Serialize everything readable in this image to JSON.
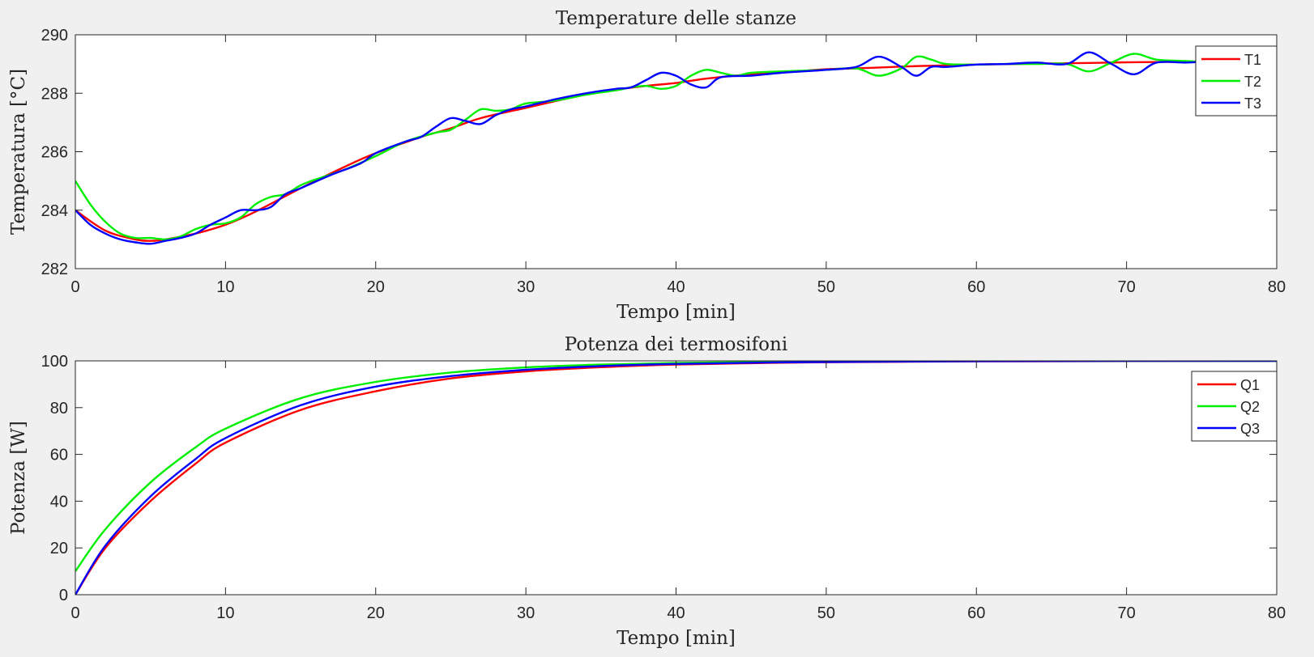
{
  "chart_data": [
    {
      "type": "line",
      "title": "Temperature delle stanze",
      "xlabel": "Tempo [min]",
      "ylabel": "Temperatura [°C]",
      "xlim": [
        0,
        80
      ],
      "ylim": [
        282,
        290
      ],
      "xticks": [
        0,
        10,
        20,
        30,
        40,
        50,
        60,
        70,
        80
      ],
      "yticks": [
        282,
        284,
        286,
        288,
        290
      ],
      "grid": false,
      "legend_position": "top-right",
      "series": [
        {
          "name": "T1",
          "color": "#ff0000",
          "x": [
            0,
            2,
            4,
            5,
            6,
            8,
            10,
            12,
            15,
            18,
            20,
            23,
            25,
            27,
            30,
            33,
            35,
            38,
            40,
            42,
            45,
            48,
            50,
            53,
            56,
            60,
            65,
            68,
            70,
            75,
            80
          ],
          "y": [
            284.0,
            283.3,
            283.0,
            282.95,
            283.0,
            283.2,
            283.5,
            283.95,
            284.75,
            285.5,
            285.95,
            286.5,
            286.8,
            287.15,
            287.5,
            287.85,
            288.05,
            288.25,
            288.35,
            288.5,
            288.65,
            288.75,
            288.82,
            288.87,
            288.93,
            288.98,
            289.02,
            289.04,
            289.06,
            289.08,
            289.1
          ]
        },
        {
          "name": "T2",
          "color": "#00ee00",
          "x": [
            0,
            1,
            2,
            3,
            4,
            5,
            6,
            7,
            8,
            9,
            10,
            11,
            12,
            13,
            14,
            15,
            16,
            18,
            20,
            22,
            24,
            25,
            26,
            27,
            28,
            29,
            30,
            32,
            34,
            36,
            37,
            38,
            39,
            40,
            41,
            42,
            43,
            44,
            45,
            47,
            50,
            52,
            53.5,
            55,
            56,
            57,
            58,
            60,
            62,
            64,
            66,
            67.5,
            69,
            70.5,
            72,
            74,
            76,
            78,
            80
          ],
          "y": [
            285.0,
            284.2,
            283.6,
            283.2,
            283.05,
            283.05,
            283.0,
            283.1,
            283.35,
            283.5,
            283.55,
            283.75,
            284.2,
            284.45,
            284.55,
            284.85,
            285.05,
            285.4,
            285.85,
            286.35,
            286.65,
            286.75,
            287.1,
            287.45,
            287.4,
            287.45,
            287.65,
            287.75,
            287.95,
            288.1,
            288.2,
            288.25,
            288.15,
            288.25,
            288.6,
            288.8,
            288.7,
            288.6,
            288.7,
            288.75,
            288.8,
            288.85,
            288.6,
            288.85,
            289.25,
            289.15,
            289.0,
            288.98,
            289.0,
            289.0,
            289.0,
            288.75,
            289.05,
            289.35,
            289.15,
            289.1,
            289.05,
            289.1,
            289.1
          ]
        },
        {
          "name": "T3",
          "color": "#0000ff",
          "x": [
            0,
            1,
            2,
            3,
            4,
            5,
            6,
            7,
            8,
            9,
            10,
            11,
            12,
            13,
            14,
            15,
            17,
            19,
            20,
            22,
            23,
            24,
            25,
            26,
            27,
            28,
            29,
            30,
            32,
            34,
            36,
            37,
            38,
            39,
            40,
            41,
            42,
            43,
            45,
            47,
            50,
            52,
            53.5,
            55,
            56,
            57,
            58,
            60,
            62,
            64,
            66,
            67.5,
            69,
            70.5,
            72,
            74,
            76,
            78,
            80
          ],
          "y": [
            284.0,
            283.5,
            283.2,
            283.0,
            282.9,
            282.85,
            282.95,
            283.05,
            283.2,
            283.5,
            283.75,
            284.0,
            284.0,
            284.1,
            284.55,
            284.75,
            285.2,
            285.6,
            285.95,
            286.35,
            286.5,
            286.85,
            287.15,
            287.05,
            286.95,
            287.25,
            287.45,
            287.55,
            287.8,
            288.0,
            288.15,
            288.2,
            288.45,
            288.7,
            288.6,
            288.3,
            288.2,
            288.55,
            288.6,
            288.7,
            288.8,
            288.9,
            289.25,
            288.9,
            288.6,
            288.9,
            288.9,
            288.98,
            289.0,
            289.05,
            289.0,
            289.4,
            289.0,
            288.65,
            289.05,
            289.05,
            289.1,
            289.05,
            289.05
          ]
        }
      ]
    },
    {
      "type": "line",
      "title": "Potenza dei termosifoni",
      "xlabel": "Tempo [min]",
      "ylabel": "Potenza [W]",
      "xlim": [
        0,
        80
      ],
      "ylim": [
        0,
        100
      ],
      "xticks": [
        0,
        10,
        20,
        30,
        40,
        50,
        60,
        70,
        80
      ],
      "yticks": [
        0,
        20,
        40,
        60,
        80,
        100
      ],
      "grid": false,
      "legend_position": "top-right",
      "series": [
        {
          "name": "Q1",
          "color": "#ff0000",
          "x": [
            0,
            2,
            5,
            8,
            10,
            15,
            20,
            25,
            30,
            35,
            40,
            45,
            50,
            60,
            70,
            80
          ],
          "y": [
            0,
            20,
            40,
            56,
            65,
            79,
            87,
            92.5,
            95.5,
            97.3,
            98.4,
            99.0,
            99.4,
            99.8,
            99.9,
            100
          ]
        },
        {
          "name": "Q2",
          "color": "#00ee00",
          "x": [
            0,
            2,
            5,
            8,
            10,
            15,
            20,
            25,
            30,
            35,
            40,
            45,
            50,
            60,
            70,
            80
          ],
          "y": [
            10,
            28,
            48,
            63,
            71,
            84,
            91,
            95,
            97.2,
            98.4,
            99.1,
            99.5,
            99.7,
            99.9,
            100,
            100
          ]
        },
        {
          "name": "Q3",
          "color": "#0000ff",
          "x": [
            0,
            2,
            5,
            8,
            10,
            15,
            20,
            25,
            30,
            35,
            40,
            45,
            50,
            60,
            70,
            80
          ],
          "y": [
            0,
            21,
            42,
            58,
            67,
            81,
            89,
            93.5,
            96.2,
            97.8,
            98.7,
            99.2,
            99.5,
            99.85,
            99.95,
            100
          ]
        }
      ]
    }
  ]
}
